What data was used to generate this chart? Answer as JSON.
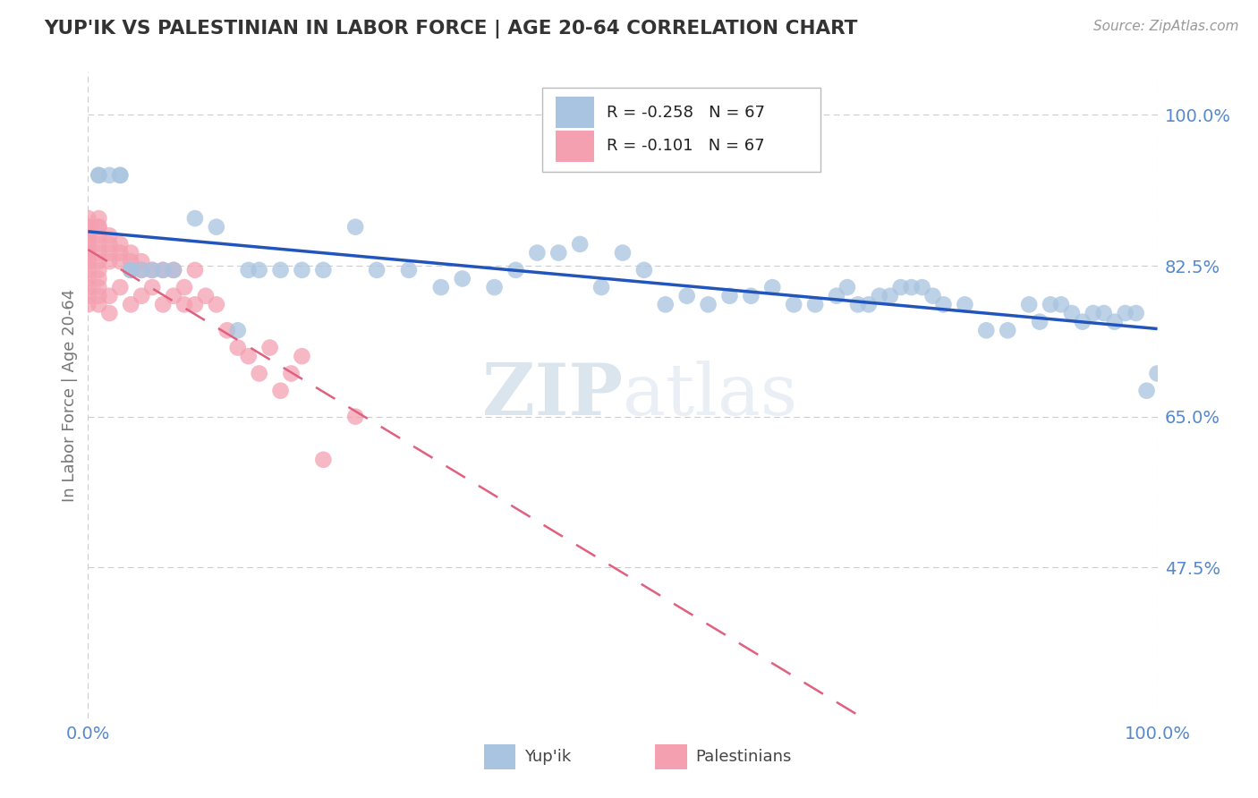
{
  "title": "YUP'IK VS PALESTINIAN IN LABOR FORCE | AGE 20-64 CORRELATION CHART",
  "source_text": "Source: ZipAtlas.com",
  "ylabel": "In Labor Force | Age 20-64",
  "xlim": [
    0.0,
    1.0
  ],
  "ylim": [
    0.3,
    1.05
  ],
  "yticks": [
    0.475,
    0.65,
    0.825,
    1.0
  ],
  "ytick_labels": [
    "47.5%",
    "65.0%",
    "82.5%",
    "100.0%"
  ],
  "xticks": [
    0.0,
    1.0
  ],
  "xtick_labels": [
    "0.0%",
    "100.0%"
  ],
  "legend_r1": "R = -0.258",
  "legend_n1": "N = 67",
  "legend_r2": "R = -0.101",
  "legend_n2": "N = 67",
  "legend_label1": "Yup'ik",
  "legend_label2": "Palestinians",
  "color_blue": "#A8C4E0",
  "color_pink": "#F4A0B0",
  "trendline_blue": "#2255BB",
  "trendline_pink": "#E06080",
  "watermark_zip": "ZIP",
  "watermark_atlas": "atlas",
  "background_color": "#FFFFFF",
  "grid_color": "#CCCCCC",
  "tick_color": "#5588CC",
  "title_color": "#333333",
  "source_color": "#999999",
  "ylabel_color": "#777777",
  "yupik_x": [
    0.01,
    0.01,
    0.02,
    0.03,
    0.03,
    0.04,
    0.04,
    0.05,
    0.06,
    0.07,
    0.08,
    0.1,
    0.12,
    0.14,
    0.15,
    0.16,
    0.18,
    0.2,
    0.22,
    0.25,
    0.27,
    0.3,
    0.33,
    0.35,
    0.38,
    0.4,
    0.42,
    0.44,
    0.46,
    0.48,
    0.5,
    0.52,
    0.54,
    0.56,
    0.58,
    0.6,
    0.62,
    0.64,
    0.66,
    0.68,
    0.7,
    0.71,
    0.72,
    0.73,
    0.74,
    0.75,
    0.76,
    0.77,
    0.78,
    0.79,
    0.8,
    0.82,
    0.84,
    0.86,
    0.88,
    0.89,
    0.9,
    0.91,
    0.92,
    0.93,
    0.94,
    0.95,
    0.96,
    0.97,
    0.98,
    0.99,
    1.0
  ],
  "yupik_y": [
    0.93,
    0.93,
    0.93,
    0.93,
    0.93,
    0.82,
    0.82,
    0.82,
    0.82,
    0.82,
    0.82,
    0.88,
    0.87,
    0.75,
    0.82,
    0.82,
    0.82,
    0.82,
    0.82,
    0.87,
    0.82,
    0.82,
    0.8,
    0.81,
    0.8,
    0.82,
    0.84,
    0.84,
    0.85,
    0.8,
    0.84,
    0.82,
    0.78,
    0.79,
    0.78,
    0.79,
    0.79,
    0.8,
    0.78,
    0.78,
    0.79,
    0.8,
    0.78,
    0.78,
    0.79,
    0.79,
    0.8,
    0.8,
    0.8,
    0.79,
    0.78,
    0.78,
    0.75,
    0.75,
    0.78,
    0.76,
    0.78,
    0.78,
    0.77,
    0.76,
    0.77,
    0.77,
    0.76,
    0.77,
    0.77,
    0.68,
    0.7
  ],
  "pal_x": [
    0.0,
    0.0,
    0.0,
    0.0,
    0.0,
    0.0,
    0.0,
    0.0,
    0.0,
    0.0,
    0.0,
    0.0,
    0.0,
    0.0,
    0.0,
    0.0,
    0.01,
    0.01,
    0.01,
    0.01,
    0.01,
    0.01,
    0.01,
    0.01,
    0.01,
    0.01,
    0.01,
    0.01,
    0.02,
    0.02,
    0.02,
    0.02,
    0.02,
    0.02,
    0.03,
    0.03,
    0.03,
    0.03,
    0.04,
    0.04,
    0.04,
    0.04,
    0.05,
    0.05,
    0.05,
    0.06,
    0.06,
    0.07,
    0.07,
    0.08,
    0.08,
    0.09,
    0.09,
    0.1,
    0.1,
    0.11,
    0.12,
    0.13,
    0.14,
    0.15,
    0.16,
    0.17,
    0.18,
    0.19,
    0.2,
    0.22,
    0.25
  ],
  "pal_y": [
    0.87,
    0.86,
    0.85,
    0.84,
    0.83,
    0.82,
    0.81,
    0.8,
    0.79,
    0.78,
    0.88,
    0.87,
    0.86,
    0.85,
    0.84,
    0.83,
    0.87,
    0.86,
    0.85,
    0.84,
    0.83,
    0.82,
    0.81,
    0.8,
    0.79,
    0.78,
    0.88,
    0.87,
    0.86,
    0.85,
    0.84,
    0.83,
    0.79,
    0.77,
    0.85,
    0.84,
    0.83,
    0.8,
    0.84,
    0.83,
    0.82,
    0.78,
    0.83,
    0.82,
    0.79,
    0.82,
    0.8,
    0.82,
    0.78,
    0.82,
    0.79,
    0.8,
    0.78,
    0.82,
    0.78,
    0.79,
    0.78,
    0.75,
    0.73,
    0.72,
    0.7,
    0.73,
    0.68,
    0.7,
    0.72,
    0.6,
    0.65
  ]
}
